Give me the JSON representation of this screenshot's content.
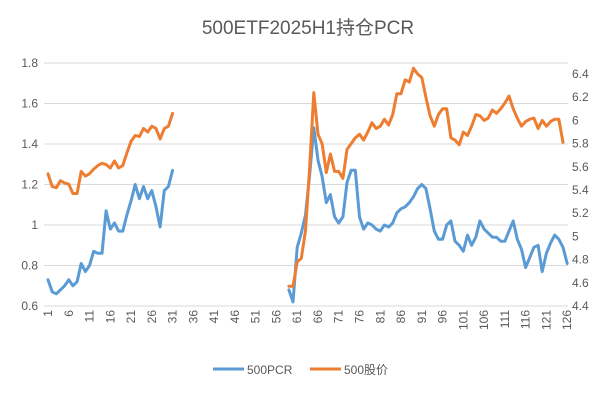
{
  "chart_data": {
    "type": "line",
    "title": "500ETF2025H1持仓PCR",
    "x_range": [
      1,
      126
    ],
    "x_tick_labels": [
      "1",
      "6",
      "11",
      "16",
      "21",
      "26",
      "31",
      "36",
      "41",
      "46",
      "51",
      "56",
      "61",
      "66",
      "71",
      "76",
      "81",
      "86",
      "91",
      "96",
      "101",
      "106",
      "111",
      "116",
      "121",
      "126"
    ],
    "y_left": {
      "range": [
        0.6,
        1.8
      ],
      "ticks": [
        "0.6",
        "0.8",
        "1",
        "1.2",
        "1.4",
        "1.6",
        "1.8"
      ]
    },
    "y_right": {
      "range": [
        4.4,
        6.5
      ],
      "ticks": [
        "4.4",
        "4.6",
        "4.8",
        "5",
        "5.2",
        "5.4",
        "5.6",
        "5.8",
        "6",
        "6.2",
        "6.4"
      ]
    },
    "grid": true,
    "legend_position": "bottom",
    "series": [
      {
        "name": "500PCR",
        "axis": "left",
        "color": "#5B9BD5",
        "segments": [
          {
            "start": 1,
            "values": [
              0.73,
              0.67,
              0.66,
              0.68,
              0.7,
              0.73,
              0.7,
              0.72,
              0.81,
              0.77,
              0.8,
              0.87,
              0.86,
              0.86,
              1.07,
              0.98,
              1.01,
              0.97,
              0.97,
              1.05,
              1.12,
              1.2,
              1.13,
              1.19,
              1.13,
              1.17,
              1.09,
              0.99,
              1.17,
              1.19,
              1.27
            ]
          },
          {
            "start": 59,
            "values": [
              0.68,
              0.62,
              0.89,
              0.96,
              1.05,
              1.25,
              1.48,
              1.32,
              1.24,
              1.11,
              1.15,
              1.04,
              1.01,
              1.04,
              1.21,
              1.27,
              1.27,
              1.04,
              0.98,
              1.01,
              1.0,
              0.98,
              0.97,
              1.0,
              0.99,
              1.01,
              1.06,
              1.08,
              1.09,
              1.11,
              1.14,
              1.18,
              1.2,
              1.18,
              1.08,
              0.97,
              0.93,
              0.93,
              1.0,
              1.02,
              0.92,
              0.9,
              0.87,
              0.95,
              0.9,
              0.94,
              1.02,
              0.98,
              0.96,
              0.94,
              0.94,
              0.92,
              0.92,
              0.97,
              1.02,
              0.93,
              0.88,
              0.79,
              0.84,
              0.89,
              0.9,
              0.77,
              0.86,
              0.91,
              0.95,
              0.93,
              0.89,
              0.81
            ]
          }
        ]
      },
      {
        "name": "500股价",
        "axis": "right",
        "color": "#ED7D31",
        "segments": [
          {
            "start": 1,
            "values": [
              5.54,
              5.43,
              5.42,
              5.48,
              5.46,
              5.45,
              5.37,
              5.37,
              5.56,
              5.52,
              5.54,
              5.58,
              5.61,
              5.63,
              5.62,
              5.59,
              5.65,
              5.59,
              5.61,
              5.72,
              5.82,
              5.87,
              5.86,
              5.93,
              5.9,
              5.95,
              5.93,
              5.84,
              5.93,
              5.95,
              6.06
            ]
          },
          {
            "start": 59,
            "values": [
              4.57,
              4.57,
              4.78,
              4.81,
              5.05,
              5.6,
              6.24,
              5.88,
              5.8,
              5.55,
              5.71,
              5.56,
              5.56,
              5.5,
              5.75,
              5.8,
              5.85,
              5.88,
              5.83,
              5.9,
              5.98,
              5.93,
              5.95,
              6.01,
              5.96,
              6.05,
              6.23,
              6.23,
              6.35,
              6.33,
              6.45,
              6.4,
              6.37,
              6.2,
              6.04,
              5.95,
              6.05,
              6.1,
              6.1,
              5.85,
              5.83,
              5.79,
              5.9,
              5.87,
              5.95,
              6.05,
              6.04,
              6.0,
              6.02,
              6.09,
              6.06,
              6.1,
              6.15,
              6.21,
              6.1,
              6.02,
              5.95,
              5.99,
              6.01,
              6.02,
              5.93,
              6.0,
              5.95,
              5.99,
              6.01,
              6.01,
              5.81
            ]
          }
        ]
      }
    ]
  }
}
